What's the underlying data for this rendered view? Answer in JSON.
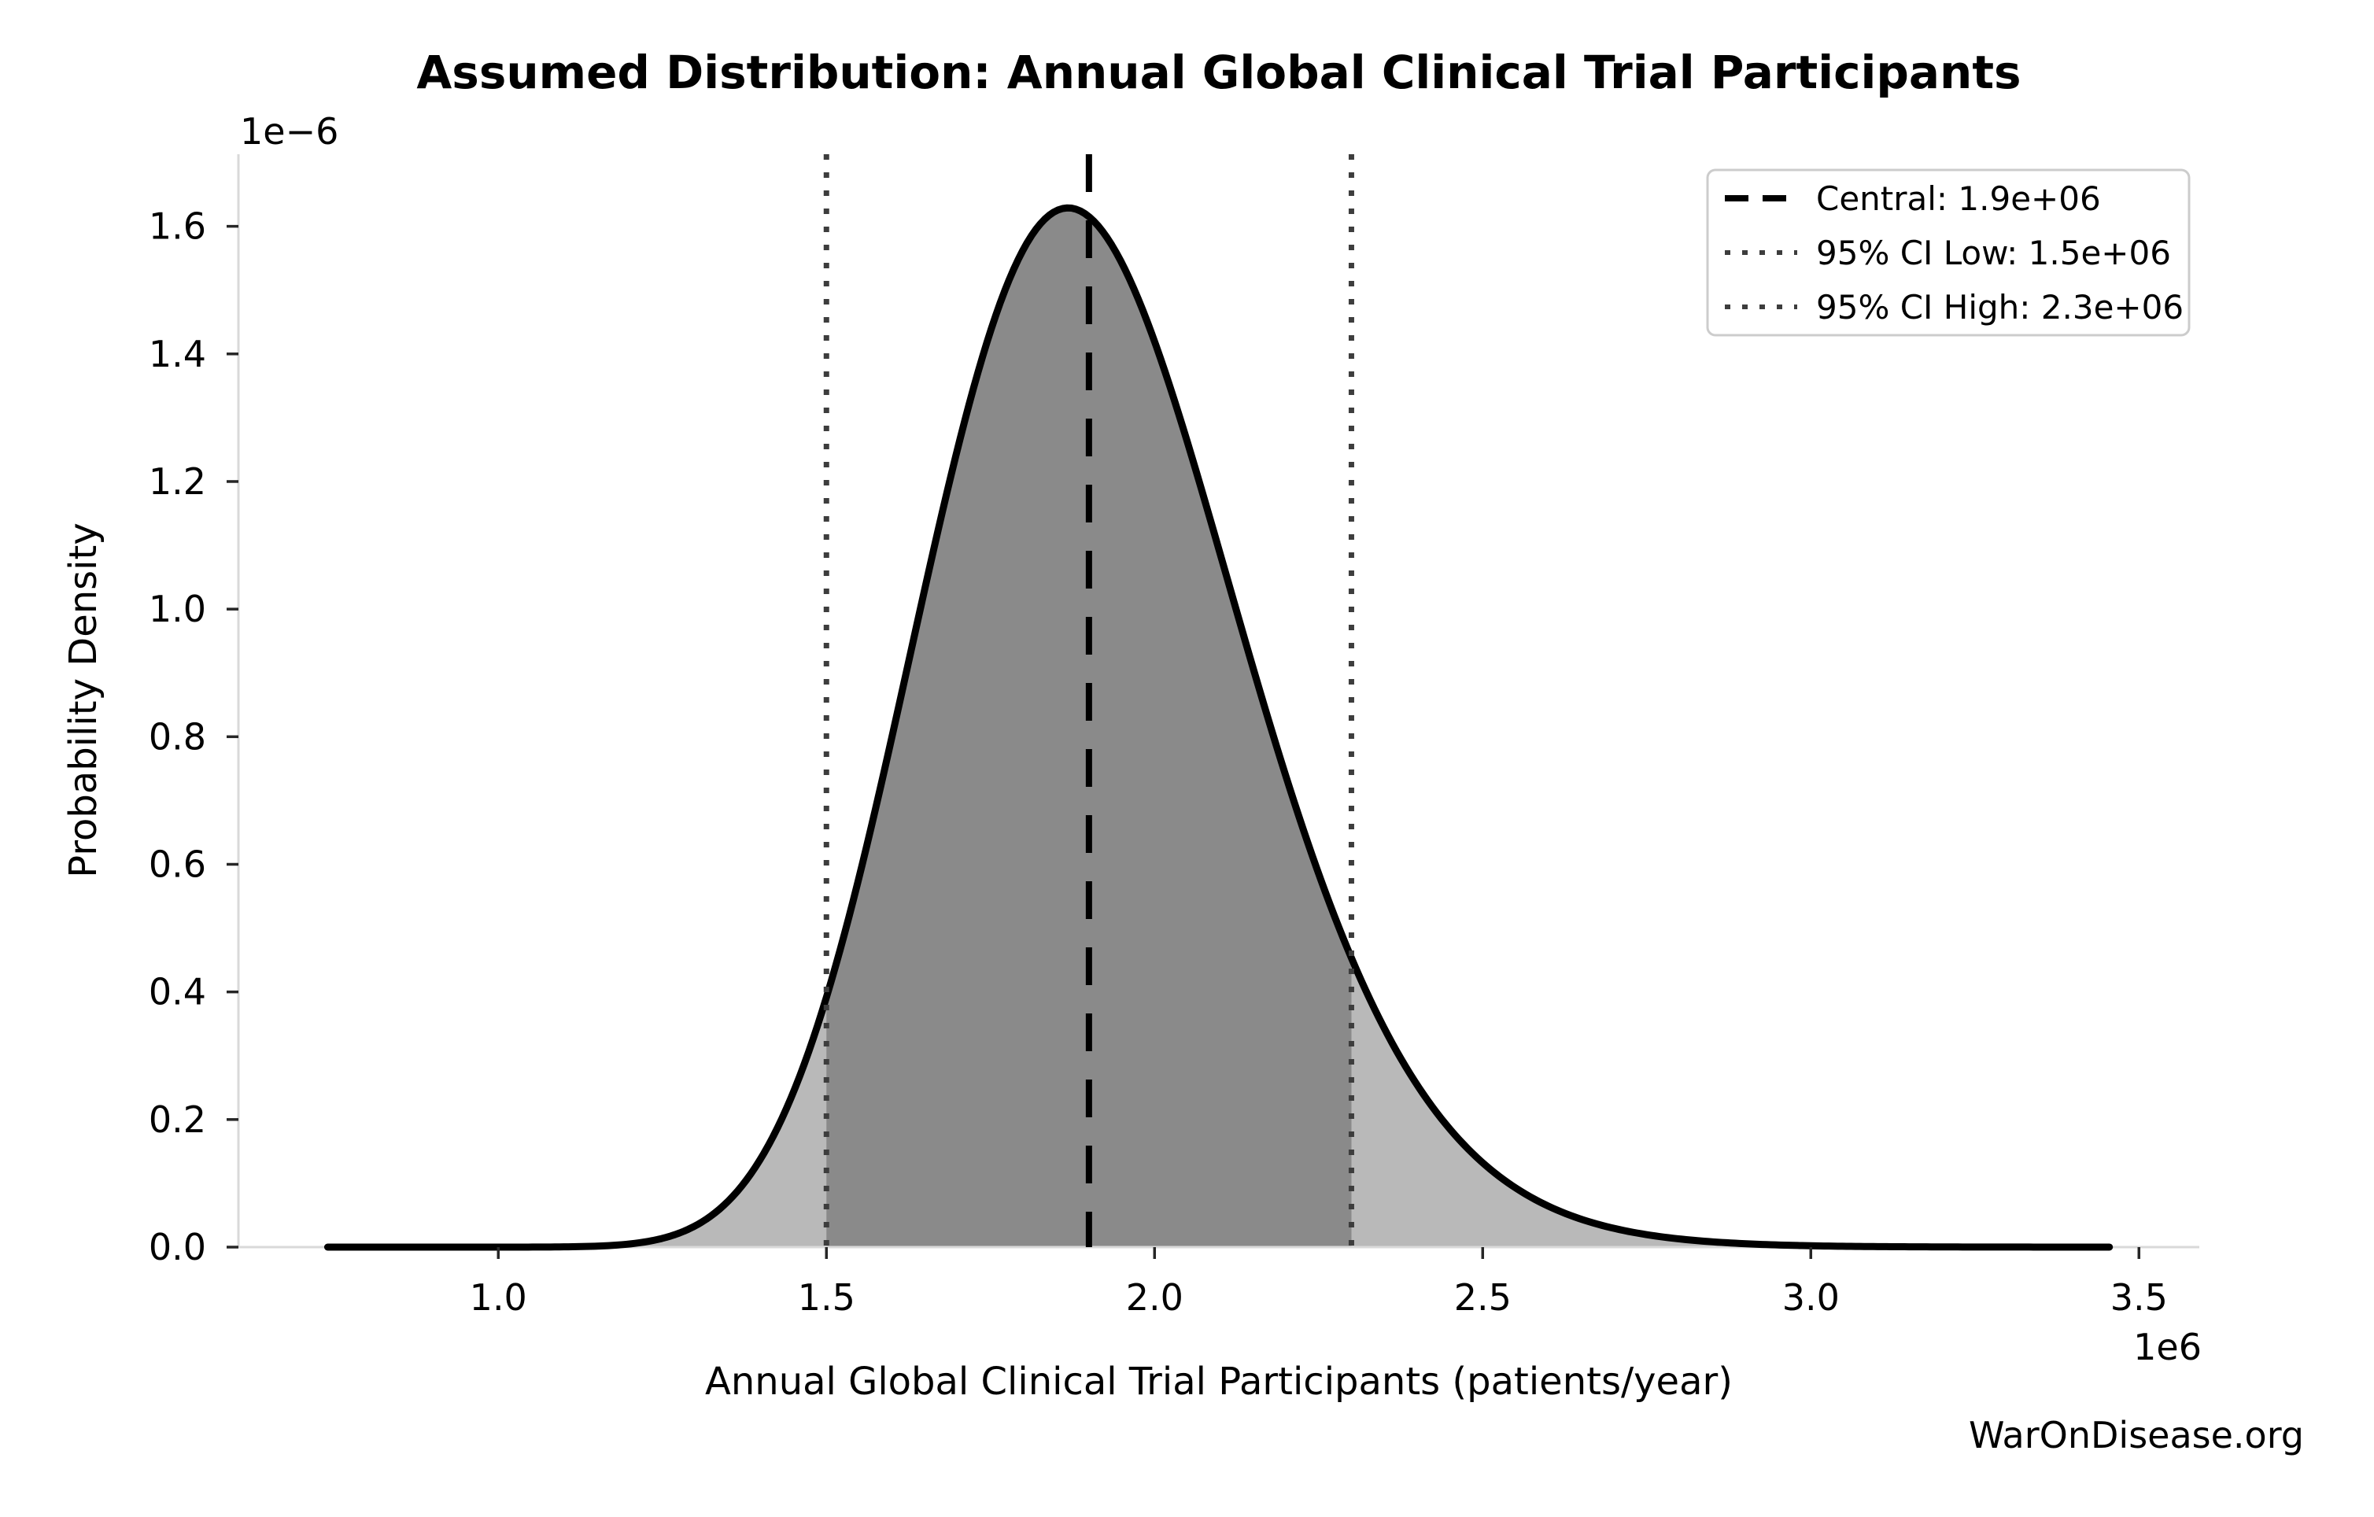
{
  "watermark": "WarOnDisease.org",
  "chart_data": {
    "type": "area",
    "title": "Assumed Distribution: Annual Global Clinical Trial Participants",
    "xlabel": "Annual Global Clinical Trial Participants (patients/year)",
    "ylabel": "Probability Density",
    "x_offset_label": "1e6",
    "y_offset_label": "1e−6",
    "grid": false,
    "legend_position": "upper right",
    "xlim": [
      604000,
      3592000
    ],
    "ylim": [
      0,
      1.713e-06
    ],
    "x_ticks": [
      1000000,
      1500000,
      2000000,
      2500000,
      3000000,
      3500000
    ],
    "x_tick_labels": [
      "1.0",
      "1.5",
      "2.0",
      "2.5",
      "3.0",
      "3.5"
    ],
    "y_ticks": [
      0,
      2e-07,
      4e-07,
      6e-07,
      8e-07,
      1e-06,
      1.2e-06,
      1.4e-06,
      1.6e-06
    ],
    "y_tick_labels": [
      "0.0",
      "0.2",
      "0.4",
      "0.6",
      "0.8",
      "1.0",
      "1.2",
      "1.4",
      "1.6"
    ],
    "central": 1900000,
    "ci_low": 1500000,
    "ci_high": 2300000,
    "distribution": {
      "family": "lognormal",
      "median": 1900000,
      "sigma_log": 0.13,
      "curve_x_range": [
        740000,
        3455000
      ],
      "peak_x": 1868000,
      "peak_density": 1.63e-06
    },
    "legend": [
      {
        "label": "Central: 1.9e+06",
        "style": "dashed",
        "color": "#000000"
      },
      {
        "label": "95% CI Low: 1.5e+06",
        "style": "dotted",
        "color": "#3d3d3d"
      },
      {
        "label": "95% CI High: 2.3e+06",
        "style": "dotted",
        "color": "#3d3d3d"
      }
    ],
    "colors": {
      "curve": "#000000",
      "fill_inner": "#8a8a8a",
      "fill_outer": "#b9b9b9",
      "central_line": "#000000",
      "ci_line": "#3d3d3d",
      "spine": "#d9d9d9",
      "tick": "#262626",
      "watermark": "#3d3d3d",
      "legend_border": "#cccccc"
    }
  }
}
